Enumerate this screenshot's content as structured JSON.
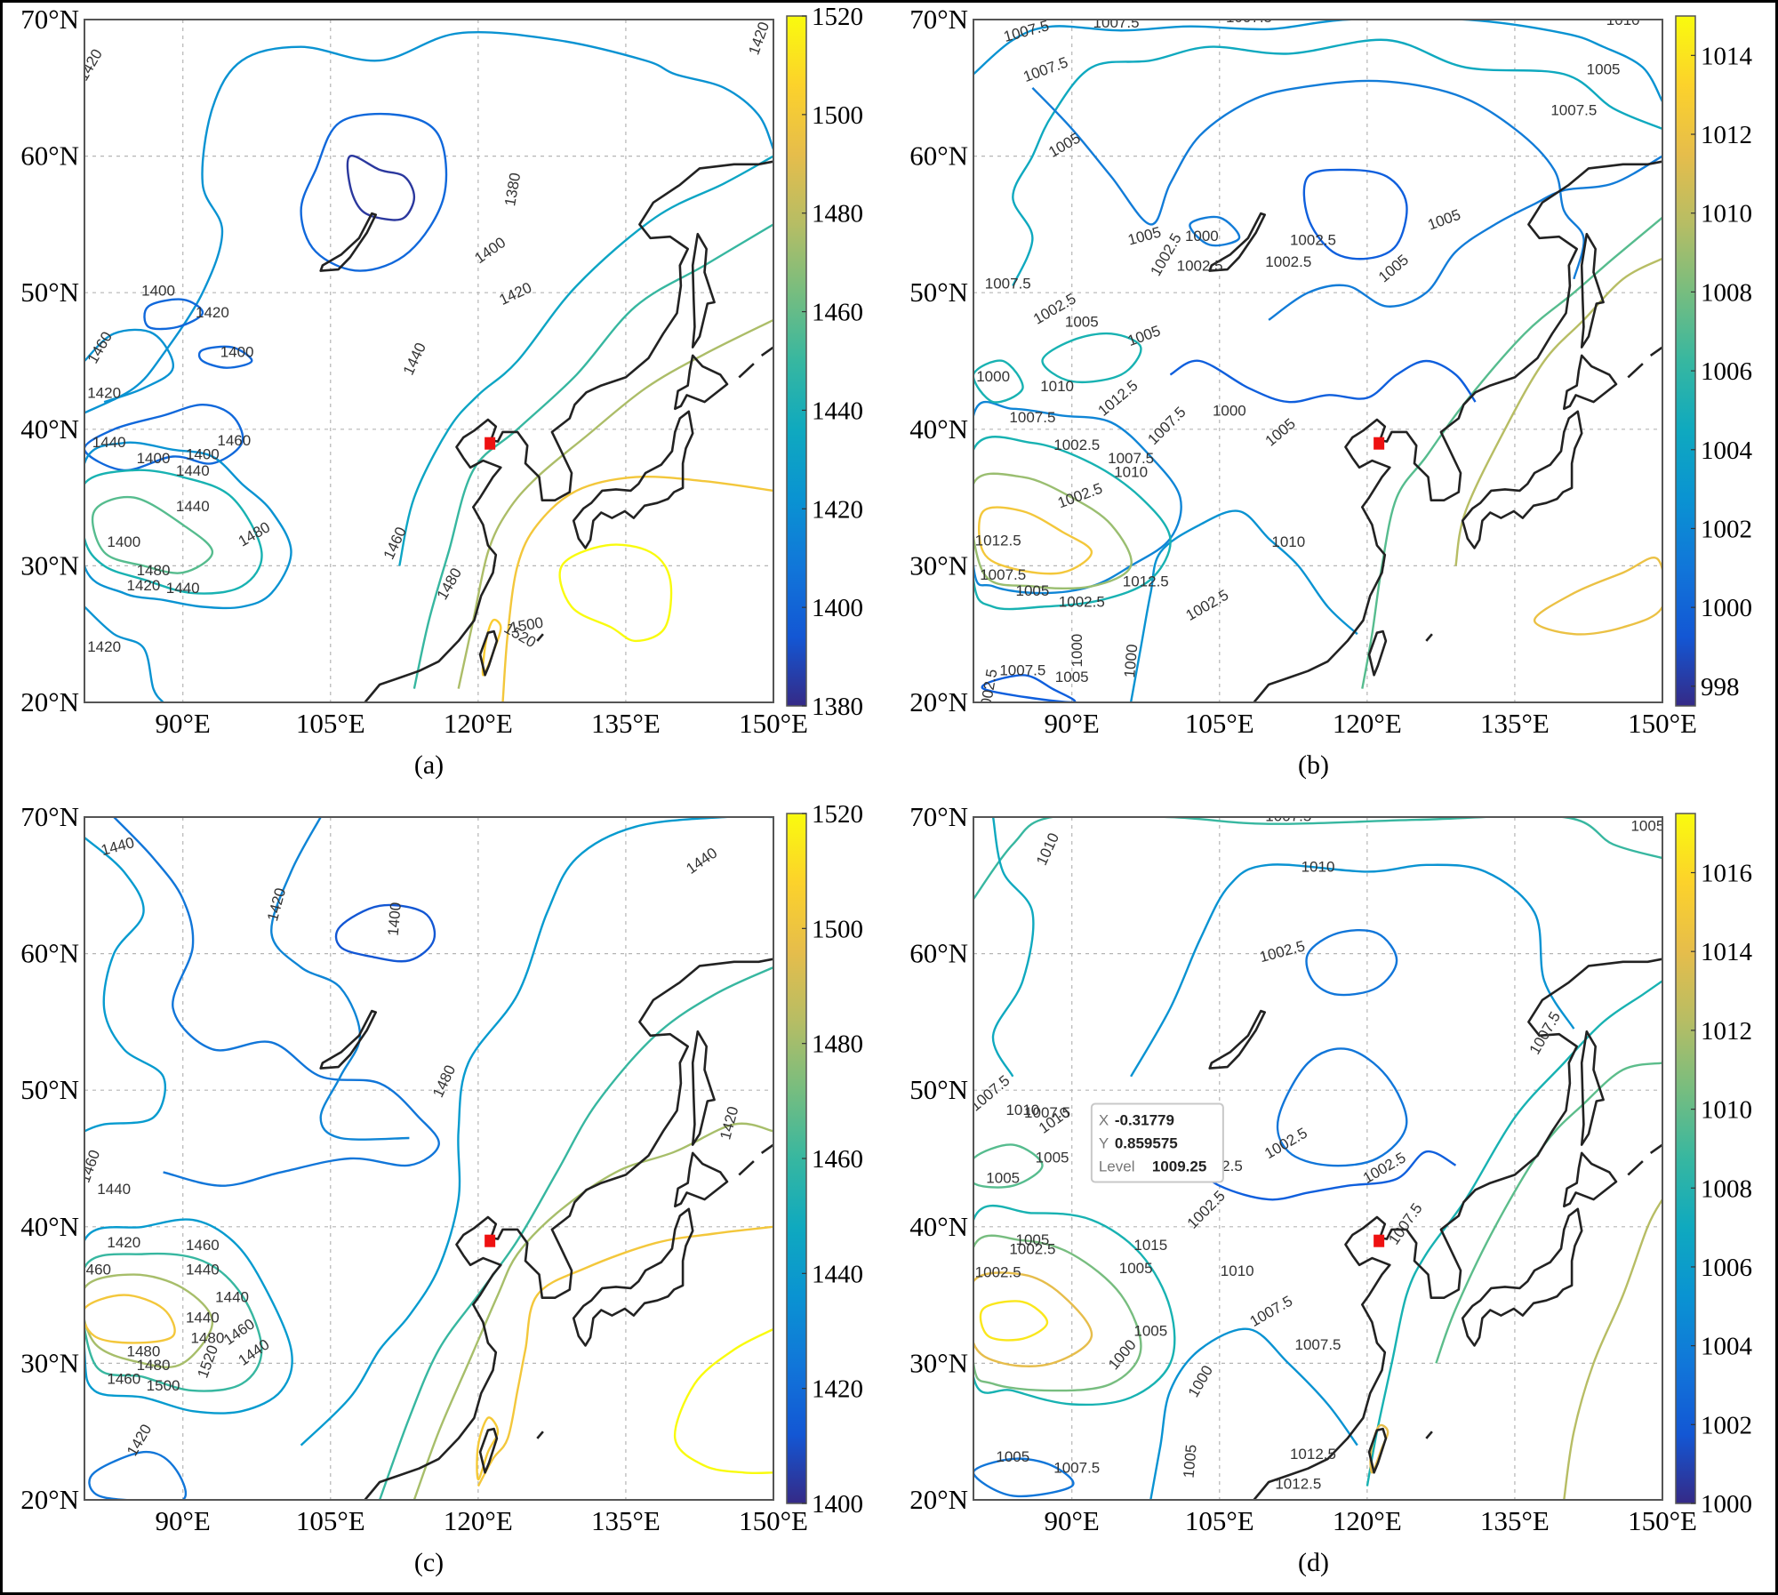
{
  "figure": {
    "panels": [
      {
        "id": "a",
        "caption": "(a)",
        "lat_labels": [
          "70°N",
          "60°N",
          "50°N",
          "40°N",
          "30°N",
          "20°N"
        ],
        "lon_labels": [
          "90°E",
          "105°E",
          "120°E",
          "135°E",
          "150°E"
        ],
        "colorbar": {
          "min": 1380,
          "max": 1520,
          "ticks": [
            "1520",
            "1500",
            "1480",
            "1460",
            "1440",
            "1420",
            "1400",
            "1380"
          ]
        },
        "contour_labels": [
          "1420",
          "1420",
          "1380",
          "1400",
          "1420",
          "1440",
          "1400",
          "1420",
          "1400",
          "1460",
          "1420",
          "1440",
          "1400",
          "1400",
          "1460",
          "1440",
          "1440",
          "1400",
          "1480",
          "1420",
          "1440",
          "1480",
          "1460",
          "1480",
          "1500",
          "1520",
          "1420"
        ],
        "marker": "red-square-site"
      },
      {
        "id": "b",
        "caption": "(b)",
        "lat_labels": [
          "70°N",
          "60°N",
          "50°N",
          "40°N",
          "30°N",
          "20°N"
        ],
        "lon_labels": [
          "90°E",
          "105°E",
          "120°E",
          "135°E",
          "150°E"
        ],
        "colorbar": {
          "min": 997.5,
          "max": 1015,
          "ticks": [
            "1014",
            "1012",
            "1010",
            "1008",
            "1006",
            "1004",
            "1002",
            "1000",
            "998"
          ]
        },
        "contour_labels": [
          "1007.5",
          "1007.5",
          "1007.5",
          "1010",
          "1005",
          "1007.5",
          "1007.5",
          "1005",
          "1005",
          "1005",
          "1002.5",
          "1000",
          "1002.5",
          "1002.5",
          "1002.5",
          "1005",
          "1007.5",
          "1002.5",
          "1005",
          "1005",
          "1000",
          "1010",
          "1012.5",
          "1007.5",
          "1000",
          "1005",
          "1007.5",
          "1002.5",
          "1007.5",
          "1010",
          "1002.5",
          "1012.5",
          "1007.5",
          "1005",
          "1002.5",
          "1000",
          "1005",
          "1007.5",
          "1002.5",
          "1010",
          "1012.5",
          "1000",
          "1002.5"
        ],
        "marker": "red-square-site"
      },
      {
        "id": "c",
        "caption": "(c)",
        "lat_labels": [
          "70°N",
          "60°N",
          "50°N",
          "40°N",
          "30°N",
          "20°N"
        ],
        "lon_labels": [
          "90°E",
          "105°E",
          "120°E",
          "135°E",
          "150°E"
        ],
        "colorbar": {
          "min": 1400,
          "max": 1520,
          "ticks": [
            "1520",
            "1500",
            "1480",
            "1460",
            "1440",
            "1420",
            "1400"
          ]
        },
        "contour_labels": [
          "1440",
          "1420",
          "1400",
          "1440",
          "1420",
          "1480",
          "1460",
          "1440",
          "1420",
          "1460",
          "1460",
          "1440",
          "1440",
          "1440",
          "1480",
          "1460",
          "1480",
          "1480",
          "1460",
          "1500",
          "1520",
          "1440",
          "1420"
        ],
        "marker": "red-square-site"
      },
      {
        "id": "d",
        "caption": "(d)",
        "lat_labels": [
          "70°N",
          "60°N",
          "50°N",
          "40°N",
          "30°N",
          "20°N"
        ],
        "lon_labels": [
          "90°E",
          "105°E",
          "120°E",
          "135°E",
          "150°E"
        ],
        "colorbar": {
          "min": 1000,
          "max": 1017.5,
          "ticks": [
            "1016",
            "1014",
            "1012",
            "1010",
            "1008",
            "1006",
            "1004",
            "1002",
            "1000"
          ]
        },
        "contour_labels": [
          "1007.5",
          "1010",
          "1005",
          "1010",
          "1002.5",
          "1007.5",
          "1007.5",
          "1010",
          "1007.5",
          "1010",
          "1005",
          "1007.5",
          "1002.5",
          "1002.5",
          "1002.5",
          "1002.5",
          "1005",
          "1005",
          "1002.5",
          "1015",
          "1002.5",
          "1005",
          "1010",
          "1002.5",
          "1007.5",
          "1007.5",
          "1007.5",
          "1005",
          "1000",
          "1000",
          "1012.5",
          "1012.5",
          "1007.5",
          "1005",
          "1005"
        ],
        "marker": "red-square-site",
        "tooltip": {
          "x_label": "X",
          "x_value": "-0.31779",
          "y_label": "Y",
          "y_value": "0.859575",
          "level_label": "Level",
          "level_value": "1009.25"
        }
      }
    ]
  }
}
